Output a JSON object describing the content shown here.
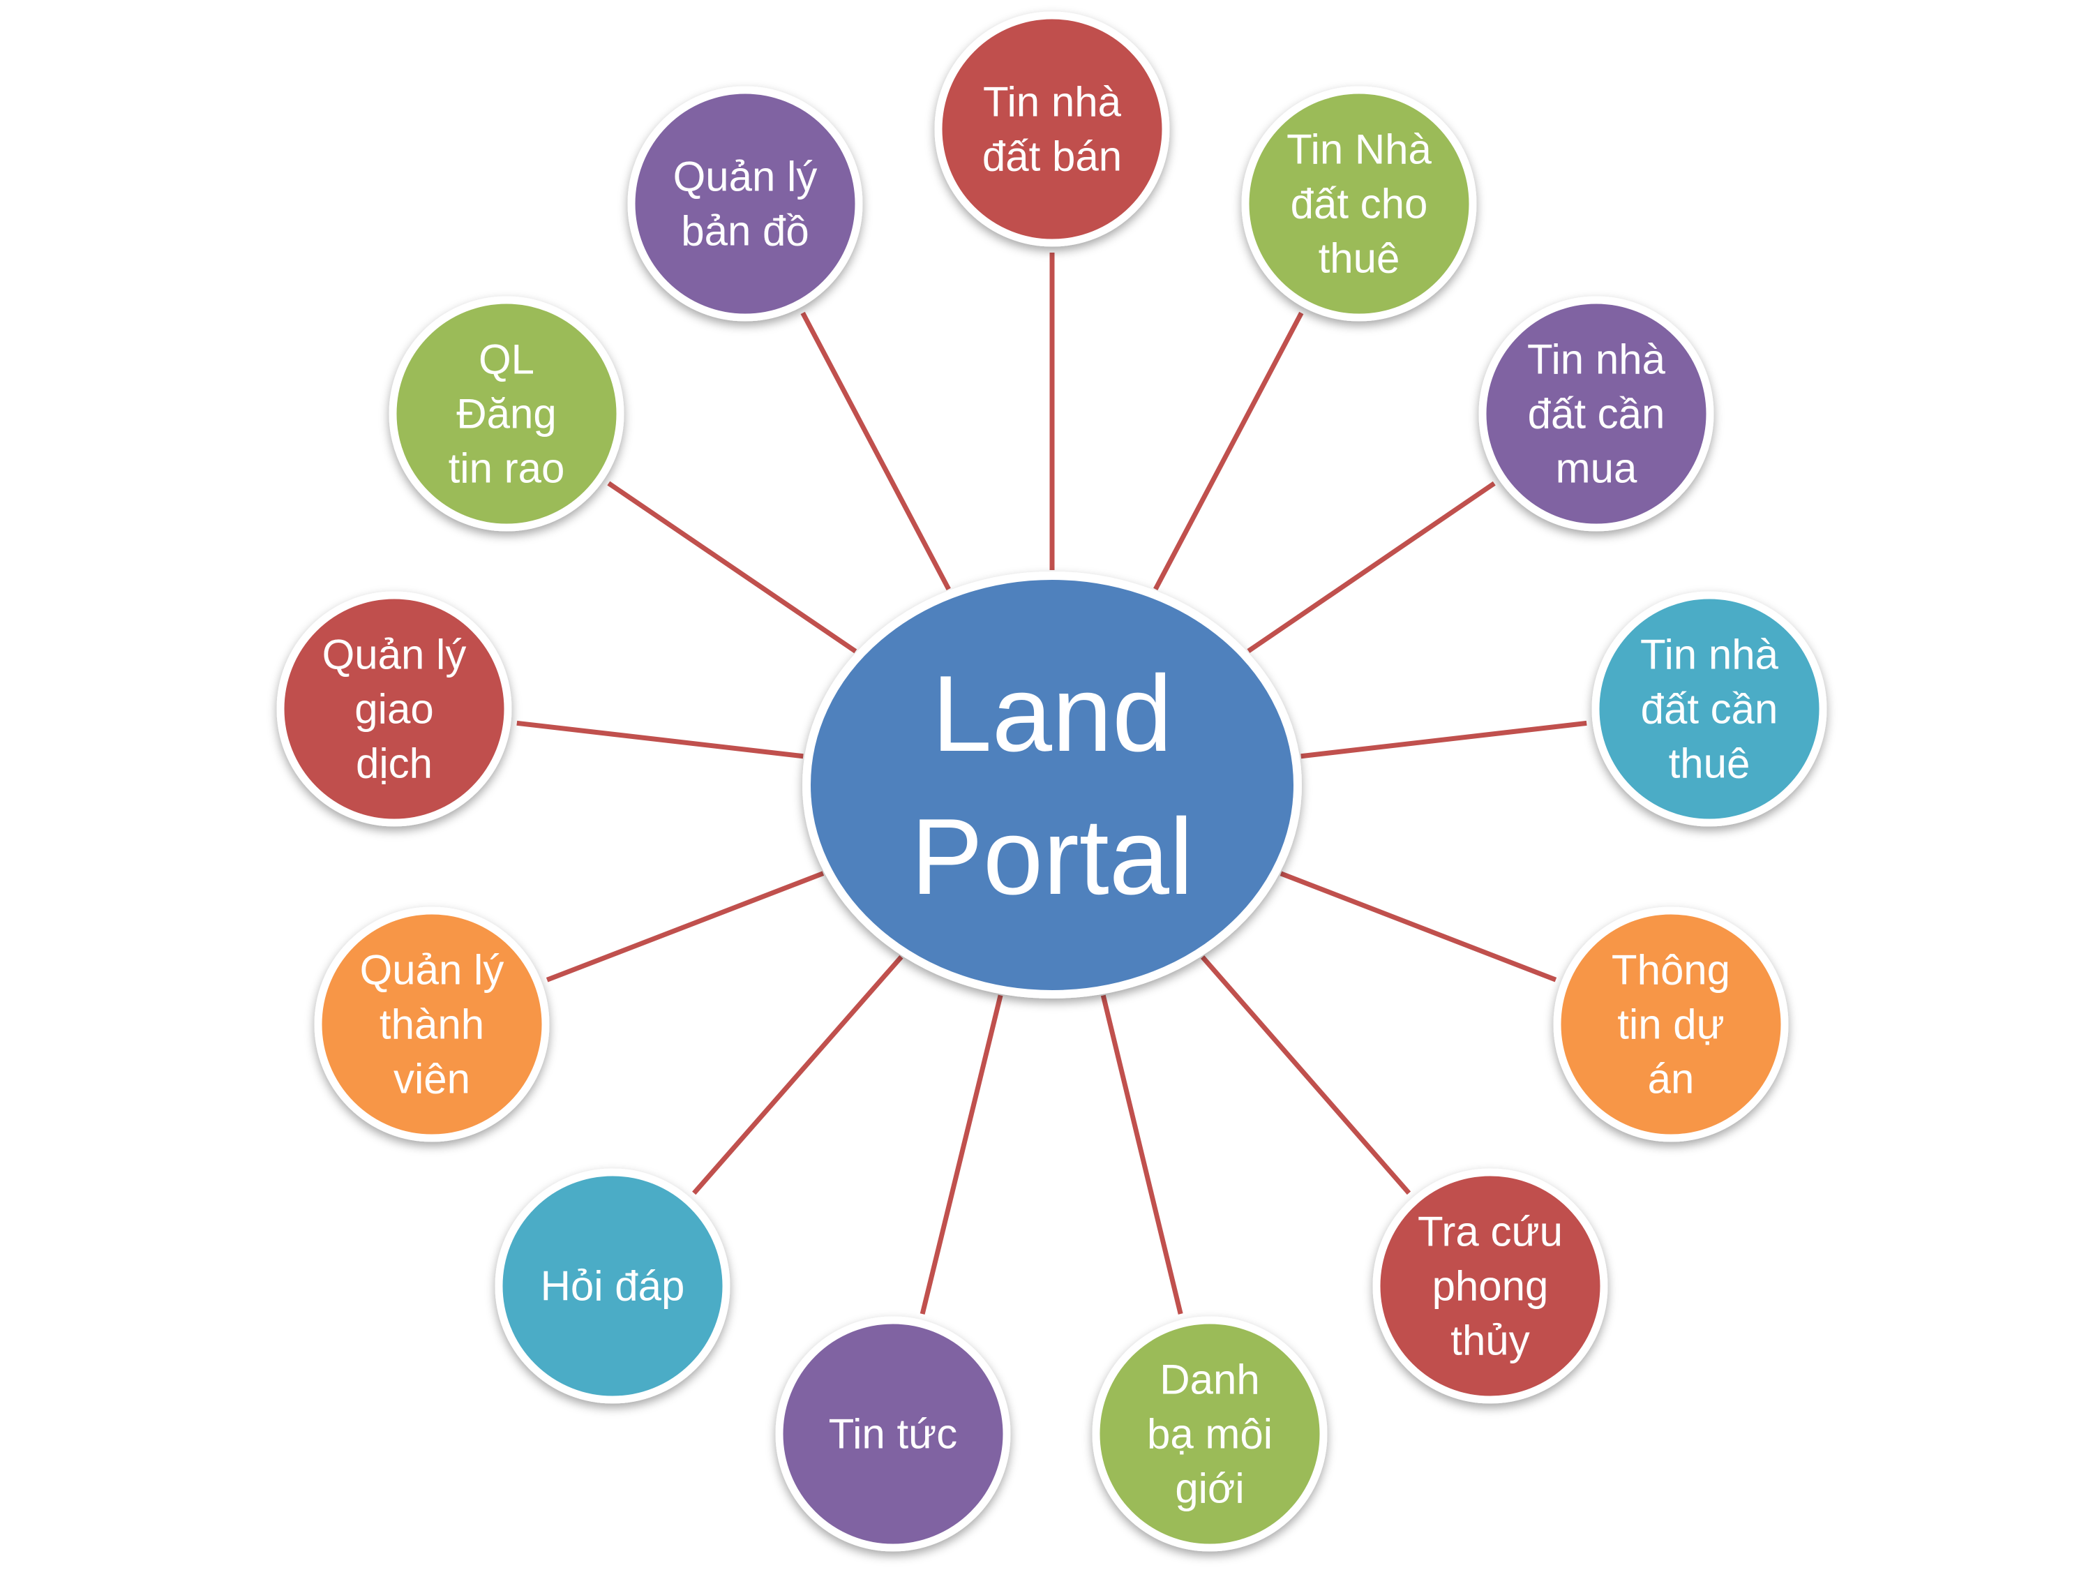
{
  "diagram": {
    "hub": {
      "label_lines": [
        "Land",
        "Portal"
      ],
      "color": "#4F81BD"
    },
    "connector_color": "#C0504D",
    "nodes": [
      {
        "id": "tin-nha-dat-ban",
        "label_lines": [
          "Tin nhà",
          "đất bán"
        ],
        "color": "#C0504D"
      },
      {
        "id": "tin-nha-dat-cho-thue",
        "label_lines": [
          "Tin Nhà",
          "đất cho",
          "thuê"
        ],
        "color": "#9BBB59"
      },
      {
        "id": "tin-nha-dat-can-mua",
        "label_lines": [
          "Tin nhà",
          "đất cần",
          "mua"
        ],
        "color": "#8064A2"
      },
      {
        "id": "tin-nha-dat-can-thue",
        "label_lines": [
          "Tin nhà",
          "đất cần",
          "thuê"
        ],
        "color": "#4BACC6"
      },
      {
        "id": "thong-tin-du-an",
        "label_lines": [
          "Thông",
          "tin dự",
          "án"
        ],
        "color": "#F79646"
      },
      {
        "id": "tra-cuu-phong-thuy",
        "label_lines": [
          "Tra cứu",
          "phong",
          "thủy"
        ],
        "color": "#C0504D"
      },
      {
        "id": "danh-ba-moi-gioi",
        "label_lines": [
          "Danh",
          "bạ môi",
          "giới"
        ],
        "color": "#9BBB59"
      },
      {
        "id": "tin-tuc",
        "label_lines": [
          "Tin tức"
        ],
        "color": "#8064A2"
      },
      {
        "id": "hoi-dap",
        "label_lines": [
          "Hỏi đáp"
        ],
        "color": "#4BACC6"
      },
      {
        "id": "quan-ly-thanh-vien",
        "label_lines": [
          "Quản lý",
          "thành",
          "viên"
        ],
        "color": "#F79646"
      },
      {
        "id": "quan-ly-giao-dich",
        "label_lines": [
          "Quản lý",
          "giao",
          "dịch"
        ],
        "color": "#C0504D"
      },
      {
        "id": "ql-dang-tin-rao",
        "label_lines": [
          "QL",
          "Đăng",
          "tin rao"
        ],
        "color": "#9BBB59"
      },
      {
        "id": "quan-ly-ban-do",
        "label_lines": [
          "Quản lý",
          "bản đồ"
        ],
        "color": "#8064A2"
      }
    ]
  }
}
